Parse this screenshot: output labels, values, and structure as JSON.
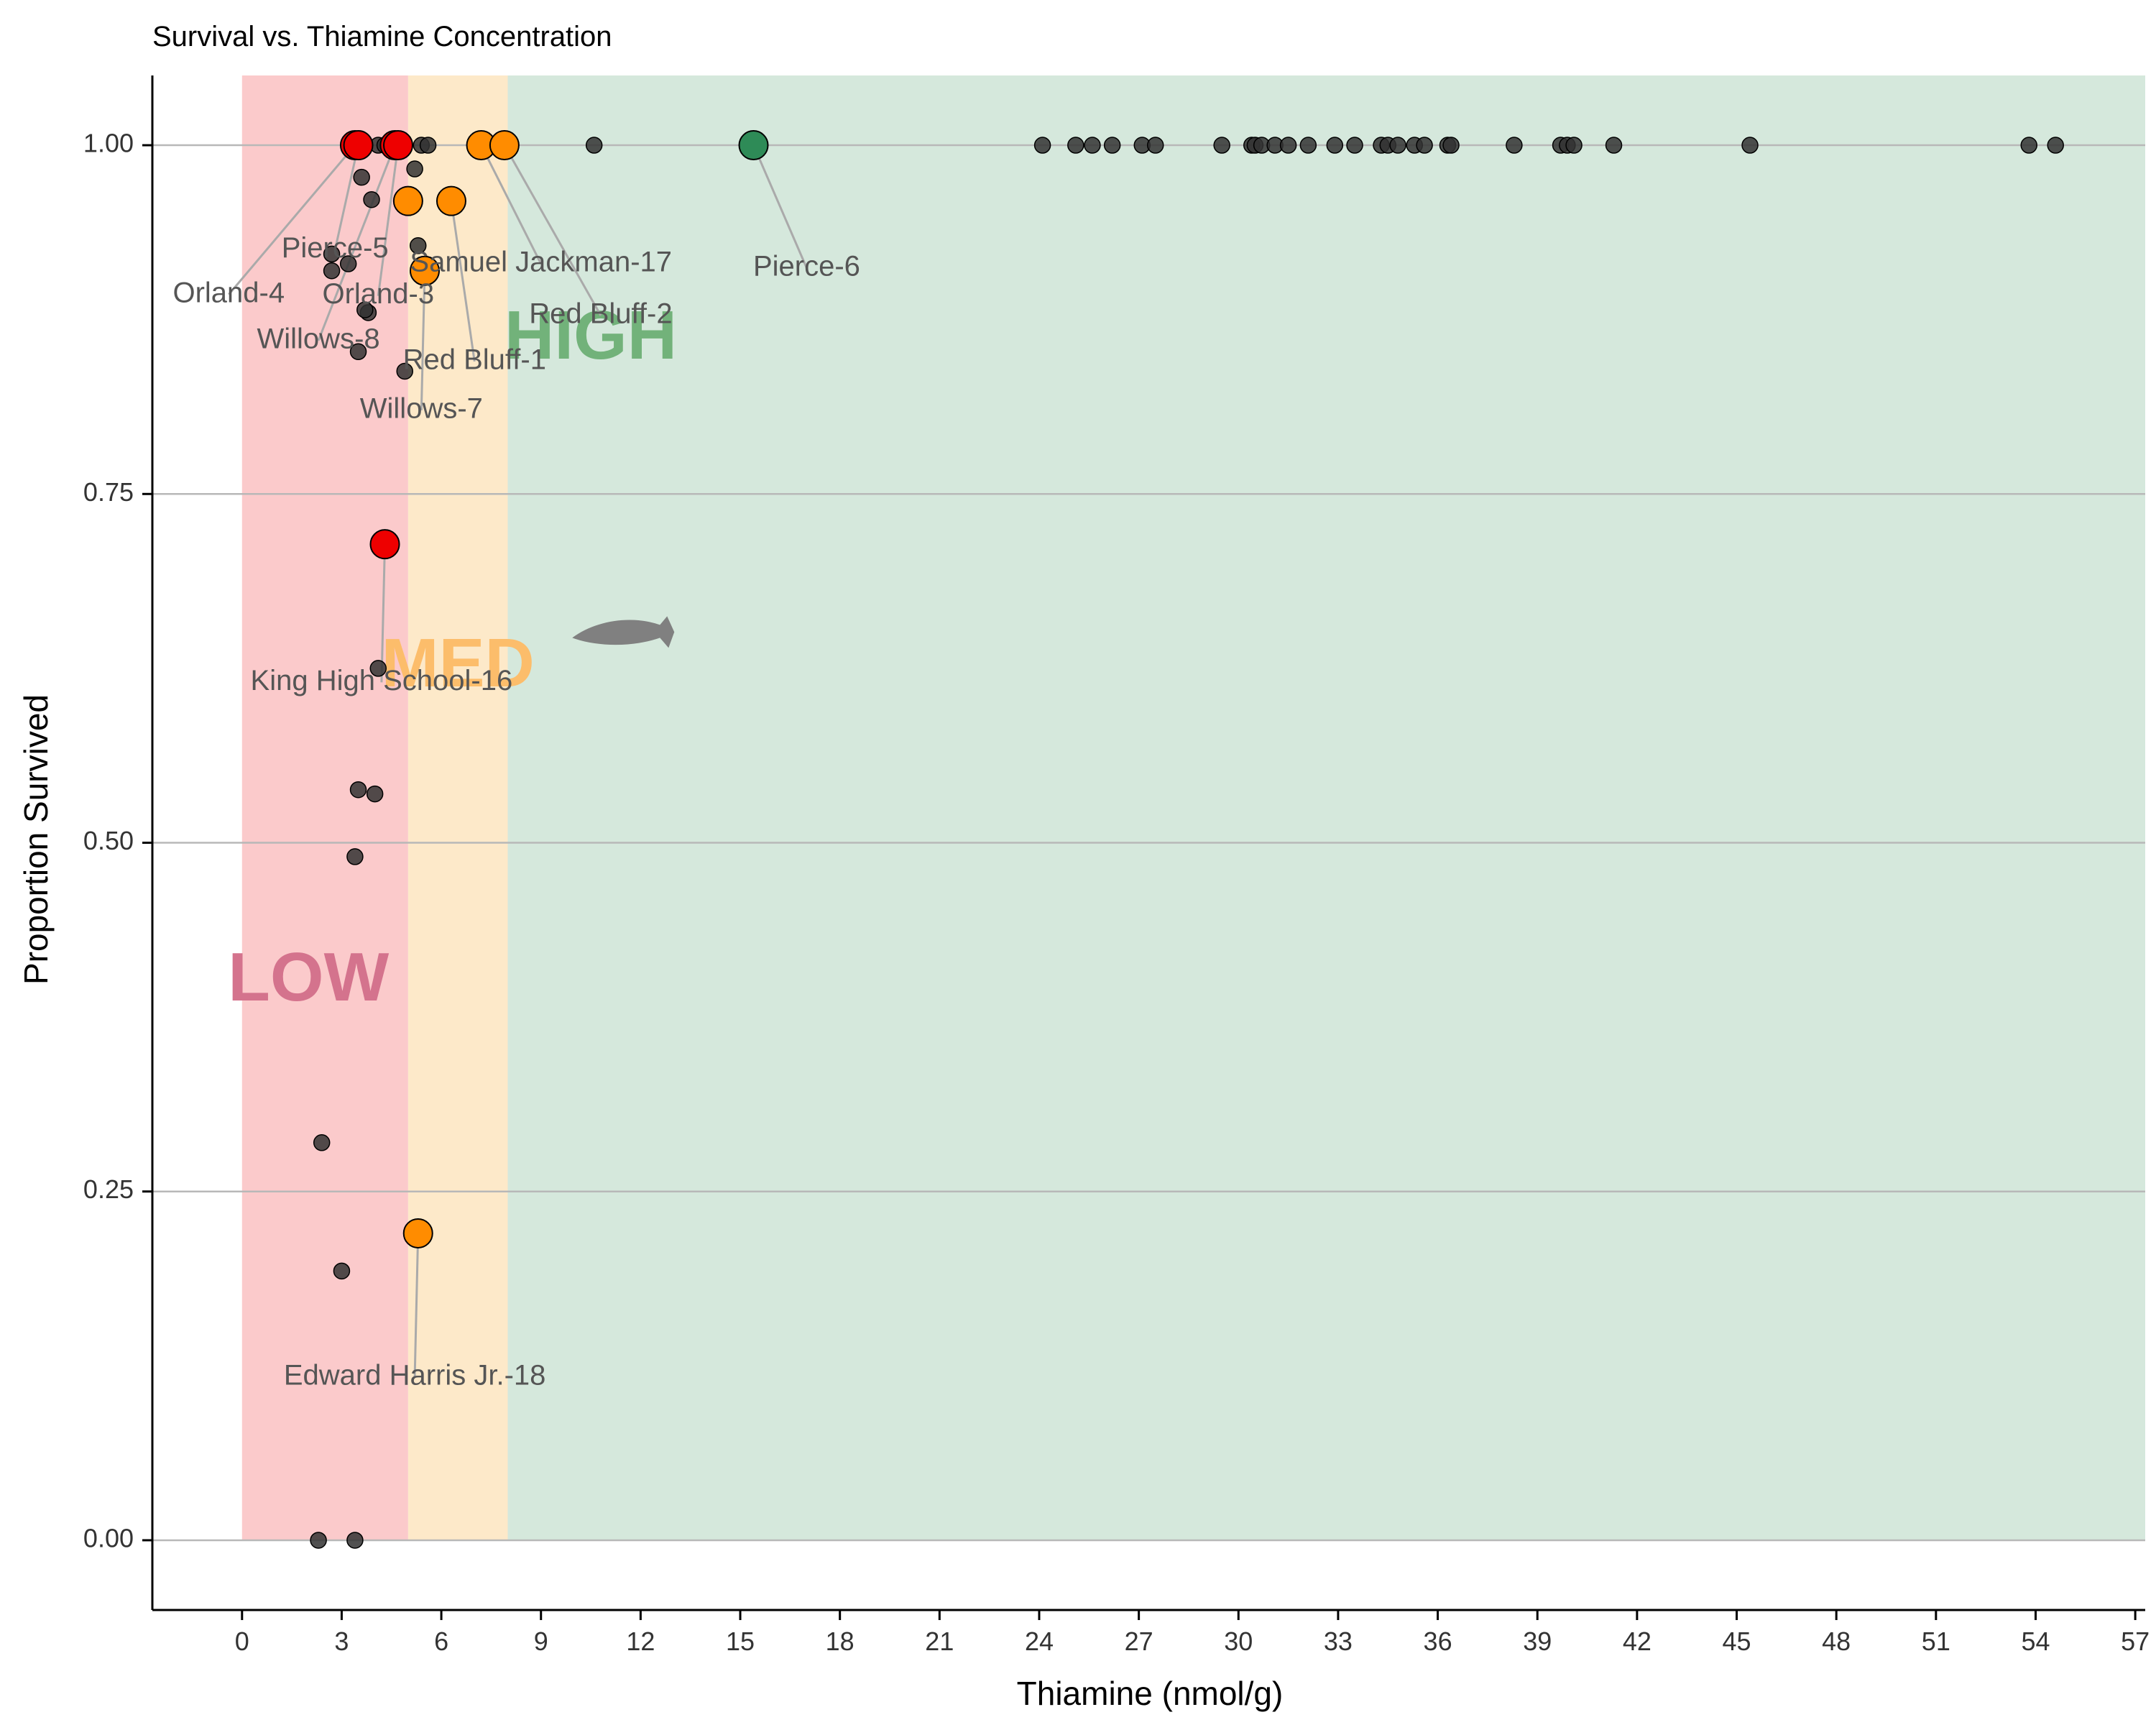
{
  "chart_data": {
    "type": "scatter",
    "title": "Survival vs. Thiamine Concentration",
    "xlabel": "Thiamine (nmol/g)",
    "ylabel": "Proportion Survived",
    "xlim": [
      -2.7,
      57.3
    ],
    "ylim": [
      -0.05,
      1.05
    ],
    "x_ticks": [
      0,
      3,
      6,
      9,
      12,
      15,
      18,
      21,
      24,
      27,
      30,
      33,
      36,
      39,
      42,
      45,
      48,
      51,
      54,
      57
    ],
    "y_ticks": [
      0,
      0.25,
      0.5,
      0.75,
      1.0
    ],
    "y_tick_labels": [
      "0.00",
      "0.25",
      "0.50",
      "0.75",
      "1.00"
    ],
    "grid": "horizontal",
    "zones": [
      {
        "label": "LOW",
        "from": 0,
        "to": 5,
        "fill": "#fbcacb",
        "text_color": "#d4738d",
        "label_x": 2,
        "label_y": 0.4
      },
      {
        "label": "MED",
        "from": 5,
        "to": 8,
        "fill": "#fde9c9",
        "text_color": "#fcbd6b",
        "label_x": 6.5,
        "label_y": 0.625
      },
      {
        "label": "HIGH",
        "from": 8,
        "to": 57.3,
        "fill": "#d5e8dc",
        "text_color": "#72b27a",
        "label_x": 10.5,
        "label_y": 0.86
      }
    ],
    "colors": {
      "low": "#ee0000",
      "medium": "#ff8c00",
      "high": "#2e8b57",
      "other": "#333333"
    },
    "fish_icon": {
      "name": "salmon-icon",
      "x": 11.5,
      "y": 0.65,
      "color": "#808080"
    },
    "other_points": [
      {
        "x": 2.3,
        "y": 0.0
      },
      {
        "x": 3.4,
        "y": 0.0
      },
      {
        "x": 2.4,
        "y": 0.285
      },
      {
        "x": 3.0,
        "y": 0.193
      },
      {
        "x": 3.4,
        "y": 0.49
      },
      {
        "x": 3.5,
        "y": 0.538
      },
      {
        "x": 4.0,
        "y": 0.535
      },
      {
        "x": 4.1,
        "y": 0.625
      },
      {
        "x": 3.5,
        "y": 0.852
      },
      {
        "x": 4.9,
        "y": 0.838
      },
      {
        "x": 3.8,
        "y": 0.88
      },
      {
        "x": 3.7,
        "y": 0.882
      },
      {
        "x": 2.7,
        "y": 0.91
      },
      {
        "x": 3.2,
        "y": 0.915
      },
      {
        "x": 2.7,
        "y": 0.922
      },
      {
        "x": 5.3,
        "y": 0.928
      },
      {
        "x": 3.9,
        "y": 0.961
      },
      {
        "x": 3.6,
        "y": 0.977
      },
      {
        "x": 5.2,
        "y": 0.983
      },
      {
        "x": 4.1,
        "y": 1.0
      },
      {
        "x": 4.3,
        "y": 1.0
      },
      {
        "x": 5.4,
        "y": 1.0
      },
      {
        "x": 5.6,
        "y": 1.0
      },
      {
        "x": 10.6,
        "y": 1.0
      },
      {
        "x": 24.1,
        "y": 1.0
      },
      {
        "x": 25.1,
        "y": 1.0
      },
      {
        "x": 25.6,
        "y": 1.0
      },
      {
        "x": 26.2,
        "y": 1.0
      },
      {
        "x": 27.1,
        "y": 1.0
      },
      {
        "x": 27.5,
        "y": 1.0
      },
      {
        "x": 29.5,
        "y": 1.0
      },
      {
        "x": 30.4,
        "y": 1.0
      },
      {
        "x": 30.5,
        "y": 1.0
      },
      {
        "x": 30.7,
        "y": 1.0
      },
      {
        "x": 31.1,
        "y": 1.0
      },
      {
        "x": 31.5,
        "y": 1.0
      },
      {
        "x": 32.1,
        "y": 1.0
      },
      {
        "x": 32.9,
        "y": 1.0
      },
      {
        "x": 33.5,
        "y": 1.0
      },
      {
        "x": 34.3,
        "y": 1.0
      },
      {
        "x": 34.5,
        "y": 1.0
      },
      {
        "x": 34.8,
        "y": 1.0
      },
      {
        "x": 35.3,
        "y": 1.0
      },
      {
        "x": 35.6,
        "y": 1.0
      },
      {
        "x": 36.3,
        "y": 1.0
      },
      {
        "x": 36.4,
        "y": 1.0
      },
      {
        "x": 38.3,
        "y": 1.0
      },
      {
        "x": 39.7,
        "y": 1.0
      },
      {
        "x": 39.9,
        "y": 1.0
      },
      {
        "x": 40.1,
        "y": 1.0
      },
      {
        "x": 41.3,
        "y": 1.0
      },
      {
        "x": 45.4,
        "y": 1.0
      },
      {
        "x": 53.8,
        "y": 1.0
      },
      {
        "x": 54.6,
        "y": 1.0
      }
    ],
    "labeled_points": [
      {
        "label": "Orland-4",
        "x": 3.4,
        "y": 1.0,
        "group": "low",
        "label_x": -0.4,
        "label_y": 0.893
      },
      {
        "label": "Pierce-5",
        "x": 3.5,
        "y": 1.0,
        "group": "low",
        "label_x": 2.8,
        "label_y": 0.925
      },
      {
        "label": "Willows-8",
        "x": 4.6,
        "y": 1.0,
        "group": "low",
        "label_x": 2.3,
        "label_y": 0.86
      },
      {
        "label": "Orland-3",
        "x": 4.7,
        "y": 1.0,
        "group": "low",
        "label_x": 4.1,
        "label_y": 0.892
      },
      {
        "label": "King High School-16",
        "x": 4.3,
        "y": 0.714,
        "group": "low",
        "label_x": 4.2,
        "label_y": 0.615
      },
      {
        "label": "Willows-7",
        "x": 5.5,
        "y": 0.91,
        "group": "medium",
        "label_x": 5.4,
        "label_y": 0.81
      },
      {
        "label": "Samuel Jackman-17",
        "x": 7.2,
        "y": 1.0,
        "group": "medium",
        "label_x": 9.0,
        "label_y": 0.915
      },
      {
        "label": "Red Bluff-2",
        "x": 7.9,
        "y": 1.0,
        "group": "medium",
        "label_x": 10.8,
        "label_y": 0.878
      },
      {
        "label": "Red Bluff-1",
        "x": 6.3,
        "y": 0.96,
        "group": "medium",
        "label_x": 7.0,
        "label_y": 0.845
      },
      {
        "label": "Pierce-6",
        "x": 15.4,
        "y": 1.0,
        "group": "high",
        "label_x": 17.0,
        "label_y": 0.912
      },
      {
        "label": "Edward Harris Jr.-18",
        "x": 5.3,
        "y": 0.22,
        "group": "medium",
        "label_x": 5.2,
        "label_y": 0.117
      },
      {
        "label": "",
        "x": 5.0,
        "y": 0.96,
        "group": "medium",
        "label_x": null,
        "label_y": null
      }
    ]
  }
}
